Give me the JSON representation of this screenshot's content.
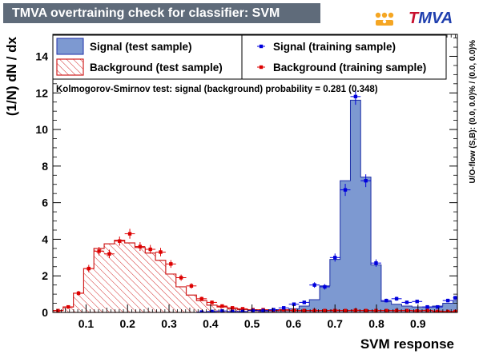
{
  "header": {
    "title": "TMVA overtraining check for classifier: SVM"
  },
  "logo": {
    "t": "T",
    "mva": "MVA"
  },
  "colors": {
    "signal_fill": "#7d99d1",
    "signal_line": "#1f2fa8",
    "background_line": "#d02020",
    "signal_marker": "#0000dd",
    "background_marker": "#dd0000"
  },
  "ks_text": "Kolmogorov-Smirnov test: signal (background) probability = 0.281 (0.348)",
  "overflow_text": "U/O-flow (S,B): (0.0, 0.0)% / (0.0, 0.0)%",
  "chart_data": {
    "type": "histogram",
    "xlabel": "SVM response",
    "ylabel": "(1/N) dN  /  dx",
    "xlim": [
      0.02,
      0.995
    ],
    "ylim": [
      0,
      15.2
    ],
    "xticks": [
      0.1,
      0.2,
      0.3,
      0.4,
      0.5,
      0.6,
      0.7,
      0.8,
      0.9
    ],
    "yticks": [
      0,
      2,
      4,
      6,
      8,
      10,
      12,
      14
    ],
    "bin_edges": [
      0.02,
      0.0447,
      0.0695,
      0.0942,
      0.1189,
      0.1437,
      0.1684,
      0.1931,
      0.2178,
      0.2426,
      0.2673,
      0.292,
      0.3168,
      0.3415,
      0.3662,
      0.391,
      0.4157,
      0.4404,
      0.4651,
      0.4899,
      0.5146,
      0.5393,
      0.5641,
      0.5888,
      0.6135,
      0.6383,
      0.663,
      0.6877,
      0.7124,
      0.7372,
      0.7619,
      0.7866,
      0.8114,
      0.8361,
      0.8608,
      0.8856,
      0.9103,
      0.935,
      0.9597,
      0.9845,
      0.995
    ],
    "legend": [
      {
        "label": "Signal (test sample)"
      },
      {
        "label": "Background (test sample)"
      },
      {
        "label": "Signal (training sample)"
      },
      {
        "label": "Background (training sample)"
      }
    ],
    "series": [
      {
        "name": "Signal (test sample)",
        "style": "filled-histogram",
        "values": [
          0,
          0,
          0,
          0,
          0,
          0,
          0,
          0,
          0,
          0,
          0,
          0,
          0,
          0,
          0,
          0,
          0,
          0,
          0,
          0,
          0.05,
          0.1,
          0.15,
          0.2,
          0.35,
          0.7,
          1.45,
          2.9,
          7.2,
          11.6,
          7.4,
          2.6,
          0.6,
          0.45,
          0.35,
          0.3,
          0.3,
          0.35,
          0.5,
          0.65
        ]
      },
      {
        "name": "Background (test sample)",
        "style": "hatched-histogram",
        "values": [
          0.1,
          0.3,
          1.05,
          2.4,
          3.5,
          3.75,
          3.95,
          3.8,
          3.55,
          3.25,
          2.85,
          2.1,
          1.4,
          0.95,
          0.65,
          0.4,
          0.3,
          0.22,
          0.15,
          0.12,
          0.12,
          0.12,
          0.1,
          0.1,
          0.1,
          0.1,
          0.1,
          0.12,
          0.1,
          0.1,
          0.1,
          0.1,
          0.1,
          0.1,
          0.1,
          0.1,
          0.1,
          0.08,
          0.05,
          0.05
        ]
      },
      {
        "name": "Signal (training sample)",
        "style": "markers",
        "values": [
          0,
          0,
          0,
          0,
          0,
          0,
          0,
          0,
          0,
          0,
          0,
          0,
          0,
          0,
          0.02,
          0.05,
          0.08,
          0.05,
          0.05,
          0.1,
          0.1,
          0.15,
          0.25,
          0.45,
          0.55,
          1.5,
          1.4,
          3.0,
          6.7,
          11.8,
          7.2,
          2.7,
          0.65,
          0.75,
          0.55,
          0.6,
          0.3,
          0.3,
          0.65,
          0.8
        ],
        "errors": [
          0,
          0,
          0,
          0,
          0,
          0,
          0,
          0,
          0,
          0,
          0,
          0,
          0,
          0,
          0.02,
          0.03,
          0.03,
          0.03,
          0.03,
          0.04,
          0.04,
          0.05,
          0.06,
          0.08,
          0.09,
          0.15,
          0.15,
          0.22,
          0.33,
          0.45,
          0.35,
          0.2,
          0.1,
          0.11,
          0.09,
          0.09,
          0.07,
          0.07,
          0.1,
          0.11
        ]
      },
      {
        "name": "Background (training sample)",
        "style": "markers",
        "values": [
          0.1,
          0.3,
          1.05,
          2.4,
          3.35,
          3.2,
          3.9,
          4.3,
          3.6,
          3.45,
          3.3,
          2.65,
          1.9,
          1.45,
          0.75,
          0.55,
          0.35,
          0.25,
          0.2,
          0.15,
          0.15,
          0.12,
          0.15,
          0.12,
          0.1,
          0.1,
          0.1,
          0.1,
          0.1,
          0.12,
          0.1,
          0.1,
          0.1,
          0.1,
          0.1,
          0.08,
          0.1,
          0.05,
          0.05,
          0.05
        ],
        "errors": [
          0.04,
          0.07,
          0.13,
          0.2,
          0.23,
          0.23,
          0.25,
          0.27,
          0.24,
          0.24,
          0.23,
          0.21,
          0.17,
          0.15,
          0.11,
          0.09,
          0.07,
          0.06,
          0.06,
          0.05,
          0.05,
          0.04,
          0.05,
          0.04,
          0.04,
          0.04,
          0.04,
          0.04,
          0.04,
          0.04,
          0.04,
          0.04,
          0.04,
          0.04,
          0.04,
          0.04,
          0.04,
          0.03,
          0.03,
          0.03
        ]
      }
    ]
  }
}
